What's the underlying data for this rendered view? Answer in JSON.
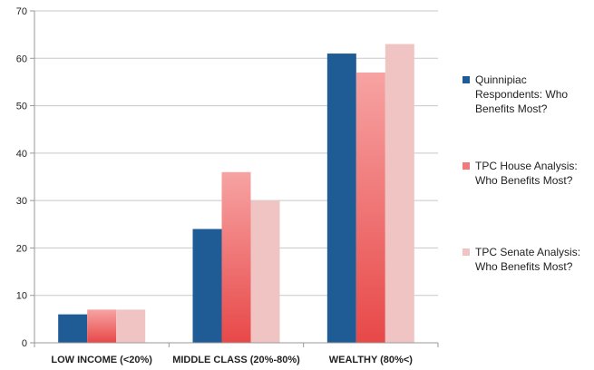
{
  "chart_data": {
    "type": "bar",
    "categories": [
      "LOW INCOME (<20%)",
      "MIDDLE CLASS (20%-80%)",
      "WEALTHY (80%<)"
    ],
    "series": [
      {
        "name": "Quinnipiac Respondents: Who Benefits Most?",
        "values": [
          6,
          24,
          61
        ],
        "color": "#1f5c96"
      },
      {
        "name": "TPC House Analysis: Who Benefits Most?",
        "values": [
          7,
          36,
          57
        ],
        "color": "#f07a7a"
      },
      {
        "name": "TPC Senate Analysis: Who Benefits Most?",
        "values": [
          7,
          30,
          63
        ],
        "color": "#f1c4c4"
      }
    ],
    "yticks": [
      0,
      10,
      20,
      30,
      40,
      50,
      60,
      70
    ],
    "ylim": [
      0,
      70
    ],
    "grid": true,
    "legend_position": "right",
    "title": "",
    "xlabel": "",
    "ylabel": ""
  }
}
